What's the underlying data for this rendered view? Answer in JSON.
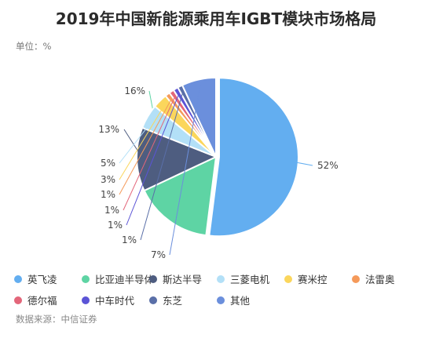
{
  "header": {
    "title": "2019年中国新能源乘用车IGBT模块市场格局",
    "unit": "单位：%"
  },
  "footer": {
    "source": "数据来源：中信证券"
  },
  "chart_data": {
    "type": "pie",
    "unit": "%",
    "slices": [
      {
        "name": "英飞凌",
        "value": 52,
        "label": "52%",
        "color": "#63aef0"
      },
      {
        "name": "比亚迪半导体",
        "value": 16,
        "label": "16%",
        "color": "#5ed4a4"
      },
      {
        "name": "斯达半导",
        "value": 13,
        "label": "13%",
        "color": "#4e5d80"
      },
      {
        "name": "三菱电机",
        "value": 5,
        "label": "5%",
        "color": "#b3e0f7"
      },
      {
        "name": "赛米控",
        "value": 3,
        "label": "3%",
        "color": "#fbd65c"
      },
      {
        "name": "法雷奥",
        "value": 1,
        "label": "1%",
        "color": "#f59a5a"
      },
      {
        "name": "德尔福",
        "value": 1,
        "label": "1%",
        "color": "#e3667a"
      },
      {
        "name": "中车时代",
        "value": 1,
        "label": "1%",
        "color": "#5b54d6"
      },
      {
        "name": "东芝",
        "value": 1,
        "label": "1%",
        "color": "#5a6fa8"
      },
      {
        "name": "其他",
        "value": 7,
        "label": "7%",
        "color": "#6b8fdc"
      }
    ],
    "legend_position": "bottom"
  }
}
